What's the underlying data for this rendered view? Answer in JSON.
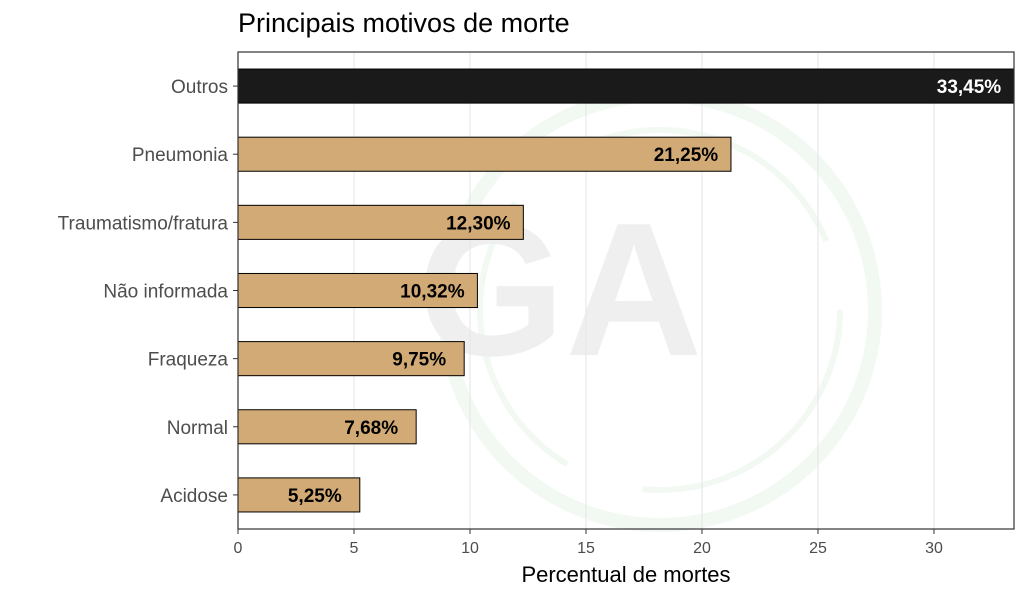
{
  "chart_data": {
    "type": "bar",
    "orientation": "horizontal",
    "title": "Principais motivos de morte",
    "xlabel": "Percentual de mortes",
    "ylabel": "",
    "xlim": [
      0,
      33.45
    ],
    "x_ticks": [
      0,
      5,
      10,
      15,
      20,
      25,
      30
    ],
    "x_tick_labels": [
      "0",
      "5",
      "10",
      "15",
      "20",
      "25",
      "30"
    ],
    "categories": [
      "Outros",
      "Pneumonia",
      "Traumatismo/fratura",
      "Não informada",
      "Fraqueza",
      "Normal",
      "Acidose"
    ],
    "values": [
      33.45,
      21.25,
      12.3,
      10.32,
      9.75,
      7.68,
      5.25
    ],
    "data_labels": [
      "33,45%",
      "21,25%",
      "12,30%",
      "10,32%",
      "9,75%",
      "7,68%",
      "5,25%"
    ],
    "grid": "vertical",
    "legend": "none",
    "colors": {
      "highlight_fill": "#1a1a1a",
      "highlight_label": "#ffffff",
      "bar_fill": "#d2aa75",
      "bar_stroke": "#000000",
      "bar_label": "#000000",
      "grid": "#e8e8e8",
      "panel_border": "#333333",
      "watermark": "#4caf50"
    }
  }
}
